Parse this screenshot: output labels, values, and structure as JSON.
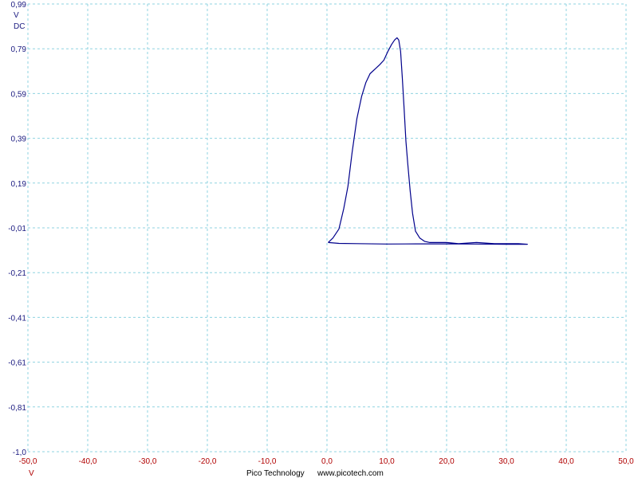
{
  "chart_data": {
    "type": "line",
    "title": "",
    "xlabel": "",
    "ylabel": "",
    "y_unit": "V",
    "y_coupling": "DC",
    "x_unit": "V",
    "xlim": [
      -50,
      50
    ],
    "ylim": [
      -1.0,
      0.99
    ],
    "x_ticks": [
      "-50,0",
      "-40,0",
      "-30,0",
      "-20,0",
      "-10,0",
      "0,0",
      "10,0",
      "20,0",
      "30,0",
      "40,0",
      "50,0"
    ],
    "y_ticks": [
      "0,99",
      "0,79",
      "0,59",
      "0,39",
      "0,19",
      "-0,01",
      "-0,21",
      "-0,41",
      "-0,61",
      "-0,81",
      "-1,0"
    ],
    "grid": true,
    "colors": {
      "trace": "#00008b",
      "x_axis_text": "#b00000",
      "y_axis_text": "#1a1a80",
      "grid": "#8fd3e0"
    },
    "series": [
      {
        "x": [
          0.2,
          1.0,
          2.0,
          2.8,
          3.5,
          4.2,
          5.0,
          5.8,
          6.5,
          7.2,
          8.0,
          8.8,
          9.5,
          10.2,
          10.8,
          11.3,
          11.7,
          12.0,
          12.3,
          12.6,
          12.9,
          13.2,
          13.5,
          13.9,
          14.3,
          14.8,
          15.5,
          16.3,
          17.2,
          18.5,
          20.0,
          22.0,
          25.0,
          28.0,
          30.0,
          32.0,
          33.5,
          30.0,
          25.0,
          20.0,
          15.0,
          10.0,
          5.0,
          2.0,
          0.2
        ],
        "y": [
          -0.07,
          -0.05,
          -0.01,
          0.08,
          0.18,
          0.33,
          0.48,
          0.58,
          0.64,
          0.68,
          0.7,
          0.72,
          0.74,
          0.78,
          0.81,
          0.83,
          0.84,
          0.83,
          0.78,
          0.66,
          0.52,
          0.38,
          0.28,
          0.16,
          0.06,
          -0.02,
          -0.05,
          -0.065,
          -0.07,
          -0.07,
          -0.07,
          -0.075,
          -0.07,
          -0.075,
          -0.075,
          -0.075,
          -0.078,
          -0.078,
          -0.077,
          -0.076,
          -0.076,
          -0.077,
          -0.075,
          -0.074,
          -0.07
        ]
      }
    ]
  },
  "footer": {
    "brand": "Pico Technology",
    "url": "www.picotech.com"
  }
}
